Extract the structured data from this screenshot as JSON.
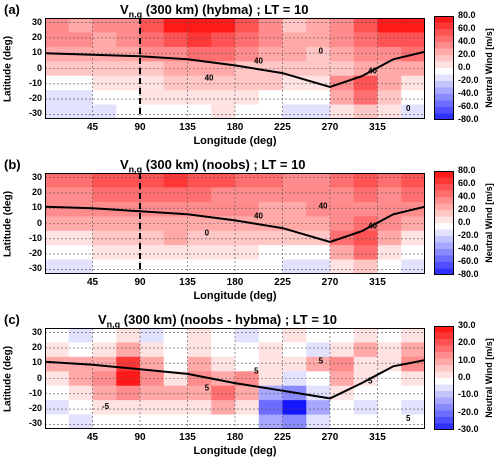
{
  "chart_data": [
    {
      "type": "heatmap",
      "panel_label": "(a)",
      "title_main": "V",
      "title_sub": "n,q",
      "title_rest": " (300 km) (hybma) ; LT = 10",
      "xlabel": "Longitude (deg)",
      "ylabel": "Latitude (deg)",
      "x_ticks": [
        "45",
        "90",
        "135",
        "180",
        "225",
        "270",
        "315"
      ],
      "x_tick_values": [
        45,
        90,
        135,
        180,
        225,
        270,
        315
      ],
      "y_ticks": [
        "30",
        "20",
        "10",
        "0",
        "-10",
        "-20",
        "-30"
      ],
      "y_tick_values": [
        30,
        20,
        10,
        0,
        -10,
        -20,
        -30
      ],
      "xlim": [
        0,
        360
      ],
      "ylim": [
        -33,
        33
      ],
      "grid": true,
      "colorbar_label": "Neutral Wind [m/s]",
      "colorbar_ticks": [
        "80.0",
        "60.0",
        "40.0",
        "20.0",
        "0.0",
        "-20.0",
        "-40.0",
        "-60.0",
        "-80.0"
      ],
      "colorbar_range": [
        -80,
        80
      ],
      "contour_labels": [
        "40",
        "40",
        "0",
        "40",
        "0"
      ],
      "dashed_meridian": 90,
      "magnetic_equator": [
        [
          0,
          10
        ],
        [
          45,
          9
        ],
        [
          90,
          8
        ],
        [
          135,
          6
        ],
        [
          180,
          2
        ],
        [
          225,
          -3
        ],
        [
          270,
          -12
        ],
        [
          300,
          -5
        ],
        [
          330,
          6
        ],
        [
          360,
          11
        ]
      ],
      "field": [
        [
          40,
          30,
          40,
          40,
          60,
          80,
          80,
          80,
          60,
          40,
          20,
          30,
          40,
          60,
          80,
          80
        ],
        [
          40,
          40,
          30,
          40,
          50,
          60,
          70,
          60,
          50,
          40,
          30,
          30,
          40,
          50,
          60,
          60
        ],
        [
          30,
          30,
          30,
          30,
          40,
          40,
          50,
          50,
          40,
          30,
          30,
          20,
          30,
          40,
          40,
          50
        ],
        [
          20,
          20,
          20,
          20,
          20,
          30,
          30,
          30,
          20,
          20,
          20,
          20,
          20,
          30,
          30,
          30
        ],
        [
          0,
          0,
          10,
          10,
          10,
          20,
          20,
          20,
          20,
          20,
          10,
          10,
          40,
          60,
          30,
          10
        ],
        [
          -10,
          -10,
          0,
          0,
          10,
          10,
          10,
          10,
          10,
          0,
          0,
          0,
          30,
          50,
          20,
          0
        ],
        [
          -10,
          -10,
          -10,
          0,
          0,
          0,
          0,
          10,
          0,
          0,
          -10,
          -10,
          10,
          20,
          10,
          -10
        ]
      ]
    },
    {
      "type": "heatmap",
      "panel_label": "(b)",
      "title_main": "V",
      "title_sub": "n,q",
      "title_rest": " (300 km) (noobs) ; LT = 10",
      "xlabel": "Longitude (deg)",
      "ylabel": "Latitude (deg)",
      "x_ticks": [
        "45",
        "90",
        "135",
        "180",
        "225",
        "270",
        "315"
      ],
      "x_tick_values": [
        45,
        90,
        135,
        180,
        225,
        270,
        315
      ],
      "y_ticks": [
        "30",
        "20",
        "10",
        "0",
        "-10",
        "-20",
        "-30"
      ],
      "y_tick_values": [
        30,
        20,
        10,
        0,
        -10,
        -20,
        -30
      ],
      "xlim": [
        0,
        360
      ],
      "ylim": [
        -33,
        33
      ],
      "grid": true,
      "colorbar_label": "Neutral Wind [m/s]",
      "colorbar_ticks": [
        "80.0",
        "60.0",
        "40.0",
        "20.0",
        "0.0",
        "-20.0",
        "-40.0",
        "-60.0",
        "-80.0"
      ],
      "colorbar_range": [
        -80,
        80
      ],
      "contour_labels": [
        "40",
        "40",
        "40",
        "0"
      ],
      "dashed_meridian": 90,
      "magnetic_equator": [
        [
          0,
          11
        ],
        [
          45,
          10
        ],
        [
          90,
          8
        ],
        [
          135,
          6
        ],
        [
          180,
          2
        ],
        [
          225,
          -3
        ],
        [
          270,
          -12
        ],
        [
          300,
          -5
        ],
        [
          330,
          6
        ],
        [
          360,
          11
        ]
      ],
      "field": [
        [
          50,
          50,
          60,
          60,
          60,
          70,
          60,
          60,
          50,
          50,
          40,
          40,
          50,
          60,
          50,
          60
        ],
        [
          40,
          40,
          50,
          50,
          50,
          50,
          50,
          40,
          40,
          40,
          40,
          40,
          40,
          50,
          40,
          50
        ],
        [
          40,
          40,
          40,
          40,
          40,
          40,
          40,
          40,
          40,
          30,
          30,
          40,
          40,
          40,
          40,
          40
        ],
        [
          30,
          30,
          30,
          30,
          30,
          30,
          30,
          30,
          30,
          30,
          30,
          30,
          40,
          50,
          40,
          30
        ],
        [
          10,
          10,
          20,
          20,
          20,
          30,
          20,
          20,
          20,
          20,
          20,
          20,
          50,
          60,
          30,
          10
        ],
        [
          0,
          0,
          10,
          10,
          10,
          10,
          10,
          10,
          10,
          0,
          0,
          0,
          30,
          50,
          10,
          0
        ],
        [
          -10,
          -10,
          0,
          0,
          0,
          0,
          0,
          0,
          0,
          0,
          -10,
          -10,
          10,
          20,
          0,
          -10
        ]
      ]
    },
    {
      "type": "heatmap",
      "panel_label": "(c)",
      "title_main": "V",
      "title_sub": "n,q",
      "title_rest": " (300 km) (noobs - hybma) ; LT = 10",
      "xlabel": "Longitude (deg)",
      "ylabel": "Latitude (deg)",
      "x_ticks": [
        "45",
        "90",
        "135",
        "180",
        "225",
        "270",
        "315"
      ],
      "x_tick_values": [
        45,
        90,
        135,
        180,
        225,
        270,
        315
      ],
      "y_ticks": [
        "30",
        "20",
        "10",
        "0",
        "-10",
        "-20",
        "-30"
      ],
      "y_tick_values": [
        30,
        20,
        10,
        0,
        -10,
        -20,
        -30
      ],
      "xlim": [
        0,
        360
      ],
      "ylim": [
        -33,
        33
      ],
      "grid": true,
      "colorbar_label": "Neutral Wind [m/s]",
      "colorbar_ticks": [
        "30.0",
        "20.0",
        "10.0",
        "0.0",
        "-10.0",
        "-20.0",
        "-30.0"
      ],
      "colorbar_range": [
        -30,
        30
      ],
      "contour_labels": [
        "5",
        "5",
        "5",
        "5",
        "5",
        "-5"
      ],
      "dashed_meridian": null,
      "magnetic_equator": [
        [
          0,
          11
        ],
        [
          45,
          9
        ],
        [
          90,
          6
        ],
        [
          135,
          3
        ],
        [
          180,
          -3
        ],
        [
          225,
          -8
        ],
        [
          270,
          -13
        ],
        [
          300,
          -3
        ],
        [
          330,
          8
        ],
        [
          360,
          12
        ]
      ],
      "field": [
        [
          0,
          -5,
          0,
          5,
          -5,
          0,
          5,
          0,
          -5,
          0,
          5,
          0,
          0,
          5,
          0,
          5
        ],
        [
          5,
          0,
          5,
          10,
          5,
          0,
          5,
          0,
          0,
          5,
          0,
          -5,
          5,
          10,
          5,
          10
        ],
        [
          10,
          10,
          10,
          25,
          10,
          0,
          10,
          5,
          0,
          5,
          5,
          10,
          15,
          5,
          5,
          15
        ],
        [
          5,
          10,
          15,
          30,
          15,
          5,
          15,
          10,
          15,
          5,
          -5,
          0,
          10,
          5,
          0,
          5
        ],
        [
          0,
          5,
          10,
          15,
          10,
          10,
          10,
          20,
          10,
          -10,
          -15,
          -5,
          5,
          0,
          0,
          0
        ],
        [
          -5,
          0,
          5,
          5,
          5,
          5,
          5,
          10,
          5,
          -20,
          -30,
          -10,
          0,
          -5,
          0,
          -5
        ],
        [
          0,
          -5,
          0,
          0,
          0,
          0,
          0,
          0,
          0,
          -10,
          -15,
          -5,
          0,
          0,
          0,
          0
        ]
      ]
    }
  ]
}
